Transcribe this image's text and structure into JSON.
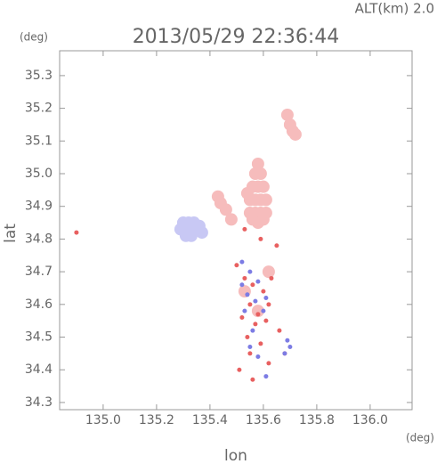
{
  "chart_data": {
    "type": "scatter",
    "title": "2013/05/29 22:36:44",
    "subtitle": "ALT(km) 2.0",
    "x_label": "lon",
    "y_label": "lat",
    "x_unit": "(deg)",
    "y_unit": "(deg)",
    "xlim": [
      134.837,
      136.157
    ],
    "ylim": [
      34.278,
      35.376
    ],
    "xticks": [
      {
        "value": 135,
        "label": "135.0"
      },
      135.2,
      135.4,
      135.6,
      135.8,
      {
        "value": 136,
        "label": "136.0"
      }
    ],
    "yticks": [
      34.3,
      34.4,
      34.5,
      34.6,
      34.7,
      34.8,
      34.9,
      {
        "value": 35,
        "label": "35.0"
      },
      35.1,
      35.2,
      35.3
    ],
    "series": [
      {
        "color": "#f6bcbc",
        "x": [
          135.55,
          135.57,
          135.59,
          135.61,
          135.55,
          135.57,
          135.59,
          135.61,
          135.56,
          135.58,
          135.6,
          135.57,
          135.59,
          135.58,
          135.54,
          135.56,
          135.58,
          135.6,
          135.7,
          135.71,
          135.72,
          135.69,
          135.44,
          135.46,
          135.43,
          135.48,
          135.53,
          135.58,
          135.62
        ],
        "y": [
          34.88,
          34.88,
          34.88,
          34.88,
          34.92,
          34.92,
          34.92,
          34.92,
          34.96,
          34.96,
          34.96,
          35.0,
          35.0,
          35.03,
          34.94,
          34.86,
          34.85,
          34.86,
          35.15,
          35.13,
          35.12,
          35.18,
          34.91,
          34.89,
          34.93,
          34.86,
          34.64,
          34.58,
          34.7
        ]
      },
      {
        "color": "#e86060",
        "x": [
          134.9,
          135.5,
          135.53,
          135.56,
          135.6,
          135.63,
          135.55,
          135.58,
          135.62,
          135.52,
          135.57,
          135.61,
          135.54,
          135.66,
          135.59,
          135.55,
          135.62,
          135.68,
          135.51,
          135.56,
          135.65,
          135.53,
          135.59
        ],
        "y": [
          34.82,
          34.72,
          34.68,
          34.66,
          34.64,
          34.68,
          34.6,
          34.57,
          34.6,
          34.56,
          34.54,
          34.55,
          34.5,
          34.52,
          34.48,
          34.45,
          34.42,
          34.45,
          34.4,
          34.37,
          34.78,
          34.83,
          34.8
        ]
      },
      {
        "color": "#c8c8f4",
        "x": [
          135.29,
          135.31,
          135.33,
          135.35,
          135.37,
          135.3,
          135.32,
          135.34,
          135.36,
          135.31,
          135.33
        ],
        "y": [
          34.83,
          34.83,
          34.83,
          34.83,
          34.82,
          34.85,
          34.85,
          34.85,
          34.84,
          34.81,
          34.81
        ]
      },
      {
        "color": "#7c7ce4",
        "x": [
          135.52,
          135.55,
          135.58,
          135.61,
          135.54,
          135.57,
          135.6,
          135.53,
          135.56,
          135.69,
          135.7,
          135.68,
          135.58,
          135.55,
          135.61,
          135.52
        ],
        "y": [
          34.73,
          34.7,
          34.67,
          34.62,
          34.63,
          34.61,
          34.58,
          34.58,
          34.52,
          34.49,
          34.47,
          34.45,
          34.44,
          34.47,
          34.38,
          34.66
        ]
      }
    ]
  }
}
